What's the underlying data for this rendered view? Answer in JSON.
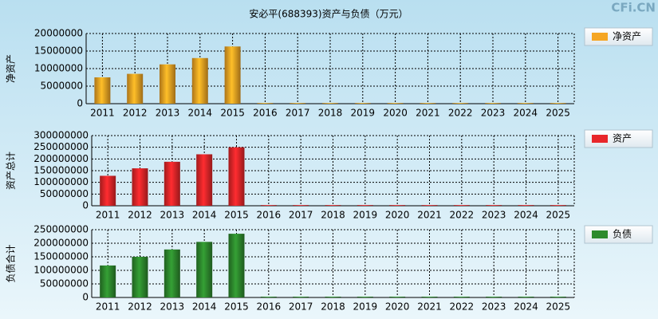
{
  "title": "安必平(688393)资产与负债（万元）",
  "watermark": "CFi.CN",
  "chart_data": [
    {
      "type": "bar",
      "ylabel": "净资产",
      "categories": [
        "2011",
        "2012",
        "2013",
        "2014",
        "2015",
        "2016",
        "2017",
        "2018",
        "2019",
        "2020",
        "2021",
        "2022",
        "2023",
        "2024",
        "2025"
      ],
      "series": [
        {
          "name": "净资产",
          "color": "#f5a623",
          "values": [
            7500000,
            8500000,
            11200000,
            13000000,
            16300000,
            200000,
            200000,
            200000,
            200000,
            200000,
            200000,
            200000,
            200000,
            200000,
            200000
          ]
        }
      ],
      "ylim": [
        0,
        20000000
      ],
      "yticks": [
        0,
        5000000,
        10000000,
        15000000,
        20000000
      ],
      "grid": true
    },
    {
      "type": "bar",
      "ylabel": "资产总计",
      "categories": [
        "2011",
        "2012",
        "2013",
        "2014",
        "2015",
        "2016",
        "2017",
        "2018",
        "2019",
        "2020",
        "2021",
        "2022",
        "2023",
        "2024",
        "2025"
      ],
      "series": [
        {
          "name": "资产",
          "color": "#e8262a",
          "values": [
            128000000,
            160000000,
            188000000,
            220000000,
            250000000,
            3000000,
            3000000,
            3000000,
            3000000,
            3000000,
            3000000,
            3000000,
            3000000,
            3000000,
            3000000
          ]
        }
      ],
      "ylim": [
        0,
        300000000
      ],
      "yticks": [
        0,
        50000000,
        100000000,
        150000000,
        200000000,
        250000000,
        300000000
      ],
      "grid": true
    },
    {
      "type": "bar",
      "ylabel": "负债合计",
      "categories": [
        "2011",
        "2012",
        "2013",
        "2014",
        "2015",
        "2016",
        "2017",
        "2018",
        "2019",
        "2020",
        "2021",
        "2022",
        "2023",
        "2024",
        "2025"
      ],
      "series": [
        {
          "name": "负债",
          "color": "#2e8b2e",
          "values": [
            118000000,
            150000000,
            177000000,
            205000000,
            235000000,
            3000000,
            3000000,
            3000000,
            3000000,
            3000000,
            3000000,
            3000000,
            3000000,
            3000000,
            3000000
          ]
        }
      ],
      "ylim": [
        0,
        250000000
      ],
      "yticks": [
        0,
        50000000,
        100000000,
        150000000,
        200000000,
        250000000
      ],
      "grid": true
    }
  ]
}
